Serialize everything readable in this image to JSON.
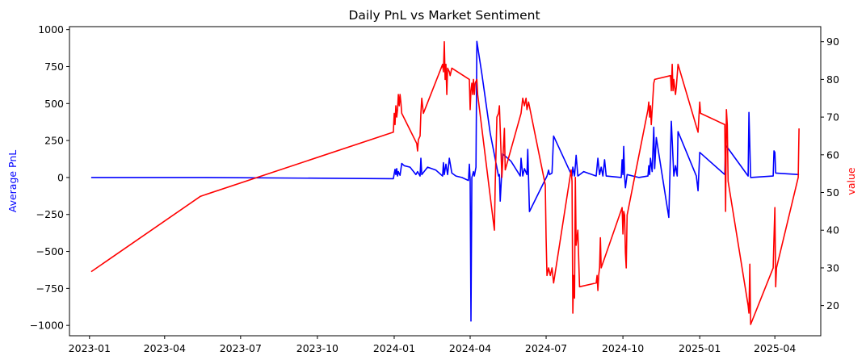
{
  "chart_data": {
    "type": "line",
    "title": "Daily PnL vs Market Sentiment",
    "xlabel": "",
    "x_axis": {
      "type": "date",
      "range": [
        "2022-12-08",
        "2025-05-26"
      ],
      "ticks": [
        "2023-01",
        "2023-04",
        "2023-07",
        "2023-10",
        "2024-01",
        "2024-04",
        "2024-07",
        "2024-10",
        "2025-01",
        "2025-04"
      ]
    },
    "y_left": {
      "label": "Average PnL",
      "color": "#0000ff",
      "range": [
        -1070,
        1020
      ],
      "ticks": [
        "−1000",
        "−750",
        "−500",
        "−250",
        "0",
        "250",
        "500",
        "750",
        "1000"
      ]
    },
    "y_right": {
      "label": "value",
      "color": "#ff0000",
      "range": [
        12,
        94
      ],
      "ticks": [
        "20",
        "30",
        "40",
        "50",
        "60",
        "70",
        "80",
        "90"
      ]
    },
    "grid": false,
    "series": [
      {
        "axis": "left",
        "color": "#0000ff",
        "points": [
          [
            "2023-01-03",
            0
          ],
          [
            "2023-05-14",
            0
          ],
          [
            "2023-12-31",
            -8
          ],
          [
            "2024-01-02",
            55
          ],
          [
            "2024-01-03",
            20
          ],
          [
            "2024-01-04",
            60
          ],
          [
            "2024-01-05",
            10
          ],
          [
            "2024-01-06",
            40
          ],
          [
            "2024-01-08",
            15
          ],
          [
            "2024-01-10",
            95
          ],
          [
            "2024-01-13",
            80
          ],
          [
            "2024-01-20",
            70
          ],
          [
            "2024-01-27",
            20
          ],
          [
            "2024-01-29",
            40
          ],
          [
            "2024-02-01",
            10
          ],
          [
            "2024-02-02",
            130
          ],
          [
            "2024-02-03",
            20
          ],
          [
            "2024-02-10",
            70
          ],
          [
            "2024-02-20",
            50
          ],
          [
            "2024-02-28",
            10
          ],
          [
            "2024-02-29",
            100
          ],
          [
            "2024-03-01",
            20
          ],
          [
            "2024-03-03",
            90
          ],
          [
            "2024-03-05",
            20
          ],
          [
            "2024-03-07",
            130
          ],
          [
            "2024-03-10",
            30
          ],
          [
            "2024-03-15",
            10
          ],
          [
            "2024-03-22",
            0
          ],
          [
            "2024-03-30",
            -20
          ],
          [
            "2024-03-31",
            90
          ],
          [
            "2024-04-01",
            -15
          ],
          [
            "2024-04-02",
            -970
          ],
          [
            "2024-04-03",
            0
          ],
          [
            "2024-04-05",
            40
          ],
          [
            "2024-04-06",
            10
          ],
          [
            "2024-04-08",
            70
          ],
          [
            "2024-04-09",
            920
          ],
          [
            "2024-04-15",
            700
          ],
          [
            "2024-04-25",
            300
          ],
          [
            "2024-05-05",
            10
          ],
          [
            "2024-05-06",
            20
          ],
          [
            "2024-05-07",
            -160
          ],
          [
            "2024-05-10",
            160
          ],
          [
            "2024-05-20",
            110
          ],
          [
            "2024-05-31",
            10
          ],
          [
            "2024-06-01",
            130
          ],
          [
            "2024-06-03",
            10
          ],
          [
            "2024-06-05",
            60
          ],
          [
            "2024-06-08",
            20
          ],
          [
            "2024-06-09",
            190
          ],
          [
            "2024-06-11",
            -230
          ],
          [
            "2024-07-02",
            10
          ],
          [
            "2024-07-04",
            50
          ],
          [
            "2024-07-05",
            20
          ],
          [
            "2024-07-08",
            30
          ],
          [
            "2024-07-10",
            280
          ],
          [
            "2024-08-01",
            10
          ],
          [
            "2024-08-02",
            70
          ],
          [
            "2024-08-04",
            10
          ],
          [
            "2024-08-06",
            150
          ],
          [
            "2024-08-08",
            10
          ],
          [
            "2024-08-15",
            40
          ],
          [
            "2024-08-30",
            10
          ],
          [
            "2024-09-01",
            130
          ],
          [
            "2024-09-03",
            20
          ],
          [
            "2024-09-05",
            70
          ],
          [
            "2024-09-07",
            10
          ],
          [
            "2024-09-09",
            120
          ],
          [
            "2024-09-11",
            10
          ],
          [
            "2024-09-29",
            0
          ],
          [
            "2024-09-30",
            120
          ],
          [
            "2024-10-01",
            20
          ],
          [
            "2024-10-02",
            210
          ],
          [
            "2024-10-03",
            10
          ],
          [
            "2024-10-04",
            -70
          ],
          [
            "2024-10-06",
            20
          ],
          [
            "2024-10-20",
            0
          ],
          [
            "2024-10-31",
            10
          ],
          [
            "2024-11-01",
            80
          ],
          [
            "2024-11-02",
            20
          ],
          [
            "2024-11-03",
            130
          ],
          [
            "2024-11-05",
            40
          ],
          [
            "2024-11-07",
            340
          ],
          [
            "2024-11-08",
            60
          ],
          [
            "2024-11-10",
            270
          ],
          [
            "2024-11-25",
            -270
          ],
          [
            "2024-11-28",
            380
          ],
          [
            "2024-12-01",
            10
          ],
          [
            "2024-12-03",
            80
          ],
          [
            "2024-12-05",
            10
          ],
          [
            "2024-12-06",
            310
          ],
          [
            "2024-12-28",
            10
          ],
          [
            "2024-12-30",
            -90
          ],
          [
            "2025-01-01",
            170
          ],
          [
            "2025-01-31",
            20
          ],
          [
            "2025-02-01",
            220
          ],
          [
            "2025-02-28",
            10
          ],
          [
            "2025-03-01",
            440
          ],
          [
            "2025-03-03",
            0
          ],
          [
            "2025-03-30",
            10
          ],
          [
            "2025-03-31",
            180
          ],
          [
            "2025-04-01",
            170
          ],
          [
            "2025-04-02",
            30
          ],
          [
            "2025-04-30",
            20
          ]
        ]
      },
      {
        "axis": "right",
        "color": "#ff0000",
        "points": [
          [
            "2023-01-03",
            29
          ],
          [
            "2023-05-14",
            49
          ],
          [
            "2023-12-31",
            66
          ],
          [
            "2024-01-01",
            71
          ],
          [
            "2024-01-02",
            68
          ],
          [
            "2024-01-03",
            73
          ],
          [
            "2024-01-04",
            70
          ],
          [
            "2024-01-05",
            72
          ],
          [
            "2024-01-06",
            76
          ],
          [
            "2024-01-07",
            73
          ],
          [
            "2024-01-08",
            76
          ],
          [
            "2024-01-09",
            74
          ],
          [
            "2024-01-10",
            71
          ],
          [
            "2024-01-28",
            63
          ],
          [
            "2024-01-29",
            61
          ],
          [
            "2024-01-30",
            64
          ],
          [
            "2024-02-01",
            65
          ],
          [
            "2024-02-02",
            71
          ],
          [
            "2024-02-03",
            75
          ],
          [
            "2024-02-05",
            71
          ],
          [
            "2024-02-28",
            84
          ],
          [
            "2024-02-29",
            82
          ],
          [
            "2024-03-01",
            90
          ],
          [
            "2024-03-02",
            80
          ],
          [
            "2024-03-03",
            84
          ],
          [
            "2024-03-04",
            76
          ],
          [
            "2024-03-05",
            83
          ],
          [
            "2024-03-07",
            82
          ],
          [
            "2024-03-08",
            81
          ],
          [
            "2024-03-10",
            83
          ],
          [
            "2024-03-31",
            80
          ],
          [
            "2024-04-01",
            72
          ],
          [
            "2024-04-02",
            77
          ],
          [
            "2024-04-03",
            79
          ],
          [
            "2024-04-04",
            76
          ],
          [
            "2024-04-05",
            80
          ],
          [
            "2024-04-06",
            76
          ],
          [
            "2024-04-07",
            79
          ],
          [
            "2024-04-09",
            80
          ],
          [
            "2024-04-10",
            76
          ],
          [
            "2024-04-30",
            40
          ],
          [
            "2024-05-01",
            52
          ],
          [
            "2024-05-03",
            70
          ],
          [
            "2024-05-05",
            71
          ],
          [
            "2024-05-06",
            73
          ],
          [
            "2024-05-09",
            54
          ],
          [
            "2024-05-12",
            67
          ],
          [
            "2024-05-13",
            56
          ],
          [
            "2024-06-01",
            71
          ],
          [
            "2024-06-03",
            75
          ],
          [
            "2024-06-05",
            73
          ],
          [
            "2024-06-07",
            75
          ],
          [
            "2024-06-08",
            72
          ],
          [
            "2024-06-10",
            74
          ],
          [
            "2024-06-30",
            52
          ],
          [
            "2024-07-01",
            38
          ],
          [
            "2024-07-02",
            28
          ],
          [
            "2024-07-04",
            30
          ],
          [
            "2024-07-06",
            28
          ],
          [
            "2024-07-08",
            30
          ],
          [
            "2024-07-10",
            26
          ],
          [
            "2024-07-31",
            56
          ],
          [
            "2024-08-01",
            53
          ],
          [
            "2024-08-02",
            18
          ],
          [
            "2024-08-03",
            28
          ],
          [
            "2024-08-04",
            22
          ],
          [
            "2024-08-05",
            54
          ],
          [
            "2024-08-06",
            36
          ],
          [
            "2024-08-08",
            40
          ],
          [
            "2024-08-10",
            25
          ],
          [
            "2024-08-30",
            26
          ],
          [
            "2024-08-31",
            28
          ],
          [
            "2024-09-01",
            24
          ],
          [
            "2024-09-02",
            28
          ],
          [
            "2024-09-03",
            30
          ],
          [
            "2024-09-04",
            38
          ],
          [
            "2024-09-05",
            30
          ],
          [
            "2024-09-30",
            46
          ],
          [
            "2024-10-01",
            39
          ],
          [
            "2024-10-02",
            45
          ],
          [
            "2024-10-03",
            44
          ],
          [
            "2024-10-04",
            34
          ],
          [
            "2024-10-05",
            30
          ],
          [
            "2024-10-06",
            44
          ],
          [
            "2024-10-31",
            72
          ],
          [
            "2024-11-01",
            74
          ],
          [
            "2024-11-02",
            70
          ],
          [
            "2024-11-03",
            73
          ],
          [
            "2024-11-04",
            68
          ],
          [
            "2024-11-05",
            72
          ],
          [
            "2024-11-07",
            79
          ],
          [
            "2024-11-08",
            80
          ],
          [
            "2024-11-27",
            81
          ],
          [
            "2024-11-28",
            77
          ],
          [
            "2024-11-29",
            84
          ],
          [
            "2024-11-30",
            77
          ],
          [
            "2024-12-01",
            80
          ],
          [
            "2024-12-03",
            76
          ],
          [
            "2024-12-04",
            78
          ],
          [
            "2024-12-06",
            84
          ],
          [
            "2024-12-30",
            66
          ],
          [
            "2025-01-01",
            74
          ],
          [
            "2025-01-02",
            71
          ],
          [
            "2025-01-31",
            68
          ],
          [
            "2025-02-01",
            45
          ],
          [
            "2025-02-02",
            72
          ],
          [
            "2025-02-03",
            68
          ],
          [
            "2025-02-04",
            53
          ],
          [
            "2025-02-28",
            20
          ],
          [
            "2025-03-01",
            18
          ],
          [
            "2025-03-02",
            31
          ],
          [
            "2025-03-03",
            15
          ],
          [
            "2025-03-30",
            30
          ],
          [
            "2025-03-31",
            38
          ],
          [
            "2025-04-01",
            46
          ],
          [
            "2025-04-02",
            25
          ],
          [
            "2025-04-03",
            30
          ],
          [
            "2025-04-29",
            54
          ],
          [
            "2025-04-30",
            67
          ]
        ]
      }
    ]
  }
}
